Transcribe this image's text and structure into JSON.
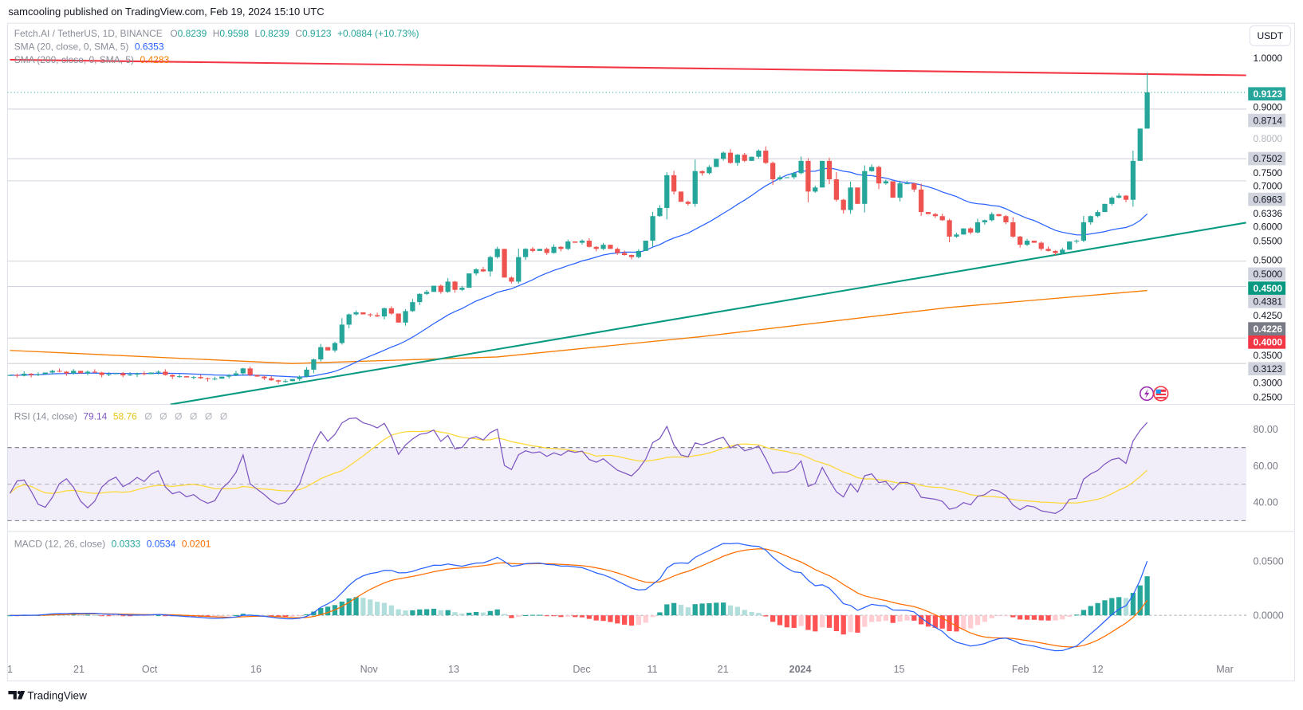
{
  "header": {
    "published": "samcooling published on TradingView.com, Feb 19, 2024 15:10 UTC"
  },
  "legend": {
    "symbol": "Fetch.AI / TetherUS, 1D, BINANCE",
    "o_label": "O",
    "o": "0.8239",
    "h_label": "H",
    "h": "0.9598",
    "l_label": "L",
    "l": "0.8239",
    "c_label": "C",
    "c": "0.9123",
    "change": "+0.0884 (+10.73%)",
    "sma20_label": "SMA (20, close, 0, SMA, 5)",
    "sma20": "0.6353",
    "sma200_label": "SMA (200, close, 0, SMA, 5)",
    "sma200": "0.4283"
  },
  "rsi_legend": {
    "label": "RSI (14, close)",
    "rsi": "79.14",
    "ma": "58.76",
    "na": [
      "Ø",
      "Ø",
      "Ø",
      "Ø",
      "Ø",
      "Ø"
    ]
  },
  "macd_legend": {
    "label": "MACD (12, 26, close)",
    "hist": "0.0333",
    "macd": "0.0534",
    "signal": "0.0201"
  },
  "currency_button": "USDT",
  "price_axis": {
    "labels": [
      {
        "text": "1.0000",
        "kind": "plain"
      },
      {
        "text": "0.9123",
        "kind": "last"
      },
      {
        "text": "0.9000",
        "kind": "plain"
      },
      {
        "text": "0.8714",
        "kind": "level"
      },
      {
        "text": "0.8000",
        "kind": "faded"
      },
      {
        "text": "0.7502",
        "kind": "level"
      },
      {
        "text": "0.7500",
        "kind": "plain"
      },
      {
        "text": "0.7000",
        "kind": "plain"
      },
      {
        "text": "0.6963",
        "kind": "level"
      },
      {
        "text": "0.6336",
        "kind": "plain"
      },
      {
        "text": "0.6000",
        "kind": "plain"
      },
      {
        "text": "0.5500",
        "kind": "plain"
      },
      {
        "text": "0.5000",
        "kind": "plain"
      },
      {
        "text": "0.5000",
        "kind": "level"
      },
      {
        "text": "0.4500",
        "kind": "support"
      },
      {
        "text": "0.4381",
        "kind": "level"
      },
      {
        "text": "0.4250",
        "kind": "plain"
      },
      {
        "text": "0.4226",
        "kind": "dark"
      },
      {
        "text": "0.4000",
        "kind": "resist"
      },
      {
        "text": "0.3500",
        "kind": "plain"
      },
      {
        "text": "0.3123",
        "kind": "level"
      },
      {
        "text": "0.3000",
        "kind": "plain"
      },
      {
        "text": "0.2500",
        "kind": "plain"
      }
    ]
  },
  "rsi_axis": [
    "80.00",
    "60.00",
    "40.00"
  ],
  "macd_axis": [
    "0.0500",
    "0.0000"
  ],
  "time_axis": [
    "1",
    "21",
    "Oct",
    "16",
    "Nov",
    "13",
    "Dec",
    "11",
    "21",
    "2024",
    "15",
    "Feb",
    "12",
    "Mar"
  ],
  "footer": {
    "brand": "TradingView"
  },
  "colors": {
    "up": "#26a69a",
    "down": "#ef5350",
    "sma20": "#2962ff",
    "sma200": "#f57c00",
    "rsi": "#7e57c2",
    "rsi_ma": "#fdd835",
    "macd": "#2962ff",
    "signal": "#ff6d00",
    "resistance": "#f23645",
    "support": "#089981"
  },
  "chart_data": {
    "type": "candlestick",
    "title": "Fetch.AI / TetherUS, 1D, BINANCE",
    "start_date": "2023-09-11",
    "interval": "1D",
    "ylim": [
      0.2,
      1.0
    ],
    "closes": [
      0.222,
      0.22,
      0.225,
      0.222,
      0.224,
      0.228,
      0.232,
      0.23,
      0.226,
      0.232,
      0.226,
      0.23,
      0.228,
      0.222,
      0.224,
      0.226,
      0.221,
      0.223,
      0.226,
      0.224,
      0.228,
      0.23,
      0.222,
      0.218,
      0.219,
      0.216,
      0.217,
      0.214,
      0.212,
      0.213,
      0.218,
      0.221,
      0.226,
      0.238,
      0.222,
      0.218,
      0.214,
      0.209,
      0.206,
      0.207,
      0.212,
      0.218,
      0.235,
      0.26,
      0.29,
      0.282,
      0.3,
      0.345,
      0.37,
      0.375,
      0.37,
      0.368,
      0.365,
      0.385,
      0.372,
      0.35,
      0.378,
      0.4,
      0.42,
      0.425,
      0.44,
      0.425,
      0.45,
      0.43,
      0.435,
      0.47,
      0.48,
      0.475,
      0.51,
      0.53,
      0.46,
      0.45,
      0.51,
      0.53,
      0.525,
      0.53,
      0.52,
      0.535,
      0.53,
      0.548,
      0.545,
      0.55,
      0.535,
      0.53,
      0.54,
      0.53,
      0.52,
      0.515,
      0.51,
      0.525,
      0.55,
      0.61,
      0.63,
      0.71,
      0.67,
      0.645,
      0.64,
      0.72,
      0.715,
      0.73,
      0.75,
      0.765,
      0.74,
      0.76,
      0.745,
      0.755,
      0.77,
      0.74,
      0.7,
      0.705,
      0.705,
      0.715,
      0.745,
      0.67,
      0.68,
      0.745,
      0.7,
      0.65,
      0.625,
      0.68,
      0.64,
      0.72,
      0.73,
      0.69,
      0.695,
      0.655,
      0.69,
      0.69,
      0.675,
      0.62,
      0.615,
      0.61,
      0.6,
      0.56,
      0.565,
      0.58,
      0.57,
      0.595,
      0.6,
      0.615,
      0.61,
      0.595,
      0.56,
      0.54,
      0.55,
      0.545,
      0.53,
      0.525,
      0.52,
      0.528,
      0.548,
      0.55,
      0.595,
      0.61,
      0.62,
      0.64,
      0.655,
      0.66,
      0.65,
      0.745,
      0.8239,
      0.9123
    ],
    "last_candle": {
      "open": 0.8239,
      "high": 0.9598,
      "low": 0.8239,
      "close": 0.9123
    },
    "sma200_points": [
      {
        "i": 0,
        "v": 0.282
      },
      {
        "i": 40,
        "v": 0.25
      },
      {
        "i": 69,
        "v": 0.266
      },
      {
        "i": 98,
        "v": 0.316
      },
      {
        "i": 133,
        "v": 0.387
      },
      {
        "i": 161,
        "v": 0.4283
      }
    ],
    "trendlines": [
      {
        "name": "resistance",
        "from": {
          "i": 0,
          "v": 0.992
        },
        "to": {
          "i": 175,
          "v": 0.954
        }
      },
      {
        "name": "support",
        "from": {
          "i": 22.7,
          "v": 0.15
        },
        "to": {
          "i": 175,
          "v": 0.594
        }
      }
    ],
    "levels": [
      0.8714,
      0.7502,
      0.6963,
      0.5,
      0.4381,
      0.3123,
      0.25
    ],
    "rsi": {
      "period": 14,
      "ma_period": 14,
      "overbought": 70,
      "oversold": 30,
      "ylim": [
        20,
        90
      ]
    },
    "macd": {
      "fast": 12,
      "slow": 26,
      "signal": 9
    }
  }
}
